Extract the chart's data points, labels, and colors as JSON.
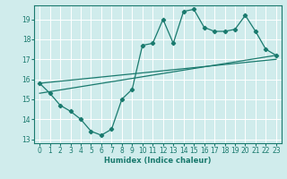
{
  "xlabel": "Humidex (Indice chaleur)",
  "background_color": "#d0ecec",
  "grid_color": "#ffffff",
  "line_color": "#1a7a6e",
  "xlim": [
    -0.5,
    23.5
  ],
  "ylim": [
    12.8,
    19.7
  ],
  "xticks": [
    0,
    1,
    2,
    3,
    4,
    5,
    6,
    7,
    8,
    9,
    10,
    11,
    12,
    13,
    14,
    15,
    16,
    17,
    18,
    19,
    20,
    21,
    22,
    23
  ],
  "yticks": [
    13,
    14,
    15,
    16,
    17,
    18,
    19
  ],
  "series1_x": [
    0,
    1,
    2,
    3,
    4,
    5,
    6,
    7,
    8,
    9,
    10,
    11,
    12,
    13,
    14,
    15,
    16,
    17,
    18,
    19,
    20,
    21,
    22,
    23
  ],
  "series1_y": [
    15.8,
    15.3,
    14.7,
    14.4,
    14.0,
    13.4,
    13.2,
    13.5,
    15.0,
    15.5,
    17.7,
    17.8,
    19.0,
    17.8,
    19.4,
    19.5,
    18.6,
    18.4,
    18.4,
    18.5,
    19.2,
    18.4,
    17.5,
    17.2
  ],
  "series2_x": [
    0,
    23
  ],
  "series2_y": [
    15.3,
    17.2
  ],
  "series3_x": [
    0,
    23
  ],
  "series3_y": [
    15.8,
    17.0
  ]
}
